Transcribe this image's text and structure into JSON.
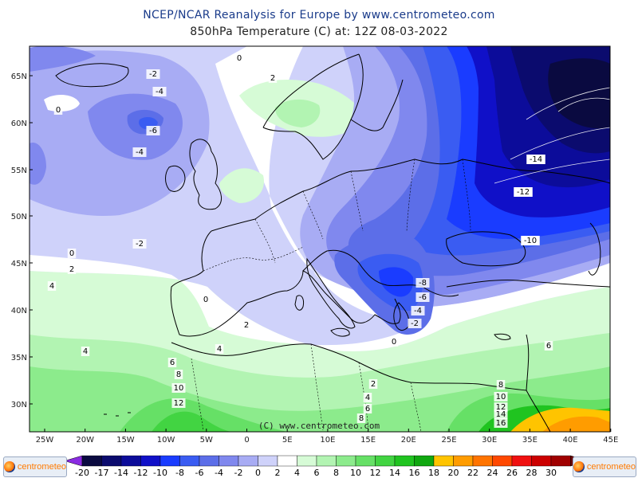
{
  "title_line1": "NCEP/NCAR Reanalysis for Europe by www.centrometeo.com",
  "title_line2": "850hPa Temperature (C) at: 12Z 08-03-2022",
  "copyright": "(C) www.centrometeo.com",
  "logo_text": "centrometeo",
  "lat_labels": [
    "65N",
    "60N",
    "55N",
    "50N",
    "45N",
    "40N",
    "35N",
    "30N"
  ],
  "lon_labels": [
    "25W",
    "20W",
    "15W",
    "10W",
    "5W",
    "0",
    "5E",
    "10E",
    "15E",
    "20E",
    "25E",
    "30E",
    "35E",
    "40E",
    "45E"
  ],
  "legend": {
    "labels": [
      "-20",
      "-17",
      "-14",
      "-12",
      "-10",
      "-8",
      "-6",
      "-4",
      "-2",
      "0",
      "2",
      "4",
      "6",
      "8",
      "10",
      "12",
      "14",
      "16",
      "18",
      "20",
      "22",
      "24",
      "26",
      "28",
      "30"
    ],
    "colors": [
      "#0a0a40",
      "#0b0b6e",
      "#0c0c9a",
      "#1010c8",
      "#1a3cff",
      "#3a5cf2",
      "#5c6ee8",
      "#8088ee",
      "#a8acf4",
      "#cfd2fa",
      "#ffffff",
      "#d6fbd6",
      "#b2f4b2",
      "#8ceb8c",
      "#66e066",
      "#42d442",
      "#20c420",
      "#10a810",
      "#ffc400",
      "#ff9c00",
      "#ff7400",
      "#ff4800",
      "#f01010",
      "#cc0000",
      "#a00000"
    ]
  },
  "contour_labels": [
    {
      "text": "0"
    },
    {
      "text": "-2"
    },
    {
      "text": "2"
    },
    {
      "text": "-4"
    },
    {
      "text": "0"
    },
    {
      "text": "-6"
    },
    {
      "text": "-4"
    },
    {
      "text": "-14"
    },
    {
      "text": "-12"
    },
    {
      "text": "-10"
    },
    {
      "text": "-2"
    },
    {
      "text": "0"
    },
    {
      "text": "2"
    },
    {
      "text": "4"
    },
    {
      "text": "0"
    },
    {
      "text": "2"
    },
    {
      "text": "-8"
    },
    {
      "text": "-6"
    },
    {
      "text": "-4"
    },
    {
      "text": "-2"
    },
    {
      "text": "0"
    },
    {
      "text": "4"
    },
    {
      "text": "4"
    },
    {
      "text": "6"
    },
    {
      "text": "8"
    },
    {
      "text": "10"
    },
    {
      "text": "12"
    },
    {
      "text": "2"
    },
    {
      "text": "4"
    },
    {
      "text": "6"
    },
    {
      "text": "8"
    },
    {
      "text": "6"
    },
    {
      "text": "8"
    },
    {
      "text": "10"
    },
    {
      "text": "12"
    },
    {
      "text": "14"
    },
    {
      "text": "16"
    }
  ]
}
